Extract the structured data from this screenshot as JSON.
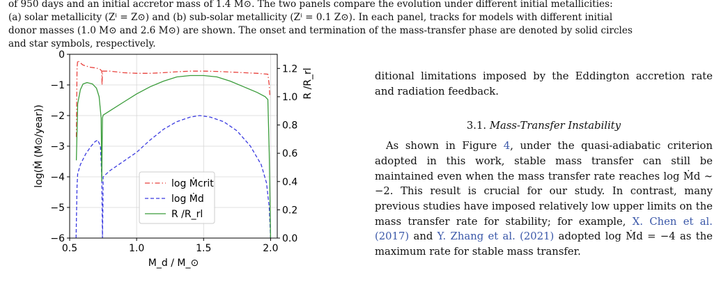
{
  "caption": {
    "line1": "of 950 days and an initial accretor mass of 1.4 M⊙. The two panels compare the evolution under different initial metallicities:",
    "line2": "(a) solar metallicity (Zⁱ = Z⊙) and (b) sub-solar metallicity (Zⁱ = 0.1 Z⊙). In each panel, tracks for models with different initial",
    "line3": "donor masses (1.0 M⊙ and 2.6 M⊙) are shown. The onset and termination of the mass-transfer phase are denoted by solid circles",
    "line4": "and star symbols, respectively."
  },
  "right_column": {
    "intro": "ditional limitations imposed by the Eddington accretion rate and radiation feedback.",
    "section_number": "3.1.",
    "section_title": "Mass-Transfer Instability",
    "para_before_fig": "As shown in Figure ",
    "fig_ref": "4",
    "para_after_fig": ", under the quasi-adiabatic criterion adopted in this work, stable mass transfer can still be maintained even when the mass transfer rate reaches log Ṁd ∼ −2. This result is crucial for our study. In contrast, many previous studies have imposed relatively low upper limits on the mass transfer rate for stability; for example, ",
    "cite1": "X. Chen et al. (2017)",
    "para_mid": " and ",
    "cite2": "Y. Zhang et al. (2021)",
    "para_end": " adopted log Ṁd = −4 as the maximum rate for stable mass transfer."
  },
  "chart_data": {
    "type": "line",
    "xlabel": "M_d / M_⊙",
    "ylabel_left": "log(Ṁ (M⊙/year))",
    "ylabel_right": "R /R_rl",
    "xlim": [
      0.5,
      2.05
    ],
    "ylim_left": [
      -6,
      0
    ],
    "ylim_right": [
      0.0,
      1.3
    ],
    "xticks": [
      "0.5",
      "1.0",
      "1.5",
      "2.0"
    ],
    "yticks_left": [
      "−6",
      "−5",
      "−4",
      "−3",
      "−2",
      "−1",
      "0"
    ],
    "yticks_right": [
      "0.0",
      "0.2",
      "0.4",
      "0.6",
      "0.8",
      "1.0",
      "1.2"
    ],
    "grid": true,
    "legend_position": "lower-left-center",
    "series": [
      {
        "name": "log Ṁcrit",
        "axis": "left",
        "color": "#e8413c",
        "style": "dashdot",
        "points": [
          [
            0.55,
            -2.7
          ],
          [
            0.555,
            -0.45
          ],
          [
            0.56,
            -0.2
          ],
          [
            0.57,
            -0.25
          ],
          [
            0.6,
            -0.35
          ],
          [
            0.65,
            -0.42
          ],
          [
            0.7,
            -0.45
          ],
          [
            0.73,
            -0.5
          ],
          [
            0.74,
            -0.55
          ],
          [
            0.742,
            -1.0
          ],
          [
            0.745,
            -0.55
          ],
          [
            0.8,
            -0.55
          ],
          [
            0.9,
            -0.6
          ],
          [
            1.0,
            -0.62
          ],
          [
            1.1,
            -0.62
          ],
          [
            1.2,
            -0.6
          ],
          [
            1.3,
            -0.57
          ],
          [
            1.4,
            -0.55
          ],
          [
            1.5,
            -0.55
          ],
          [
            1.6,
            -0.56
          ],
          [
            1.7,
            -0.58
          ],
          [
            1.8,
            -0.6
          ],
          [
            1.9,
            -0.62
          ],
          [
            1.98,
            -0.65
          ],
          [
            1.99,
            -1.0
          ],
          [
            1.995,
            -1.4
          ]
        ]
      },
      {
        "name": "log Ṁd",
        "axis": "left",
        "color": "#3a3ae0",
        "style": "dashed",
        "points": [
          [
            0.548,
            -6.0
          ],
          [
            0.555,
            -4.3
          ],
          [
            0.56,
            -3.9
          ],
          [
            0.58,
            -3.6
          ],
          [
            0.62,
            -3.25
          ],
          [
            0.66,
            -3.0
          ],
          [
            0.69,
            -2.85
          ],
          [
            0.71,
            -2.8
          ],
          [
            0.73,
            -3.0
          ],
          [
            0.74,
            -4.0
          ],
          [
            0.745,
            -6.0
          ],
          [
            0.748,
            -5.0
          ],
          [
            0.75,
            -4.0
          ],
          [
            0.8,
            -3.8
          ],
          [
            0.9,
            -3.5
          ],
          [
            1.0,
            -3.2
          ],
          [
            1.1,
            -2.8
          ],
          [
            1.2,
            -2.45
          ],
          [
            1.3,
            -2.2
          ],
          [
            1.4,
            -2.05
          ],
          [
            1.47,
            -2.0
          ],
          [
            1.55,
            -2.05
          ],
          [
            1.65,
            -2.2
          ],
          [
            1.75,
            -2.5
          ],
          [
            1.85,
            -3.0
          ],
          [
            1.93,
            -3.6
          ],
          [
            1.97,
            -4.2
          ],
          [
            1.99,
            -5.0
          ],
          [
            2.0,
            -6.0
          ]
        ]
      },
      {
        "name": "R /R_rl",
        "axis": "right",
        "color": "#3a9c3a",
        "style": "solid",
        "points": [
          [
            0.55,
            0.55
          ],
          [
            0.555,
            0.75
          ],
          [
            0.56,
            0.95
          ],
          [
            0.58,
            1.05
          ],
          [
            0.6,
            1.09
          ],
          [
            0.63,
            1.1
          ],
          [
            0.67,
            1.09
          ],
          [
            0.7,
            1.06
          ],
          [
            0.72,
            1.0
          ],
          [
            0.735,
            0.85
          ],
          [
            0.74,
            0.4
          ],
          [
            0.742,
            0.6
          ],
          [
            0.745,
            0.85
          ],
          [
            0.75,
            0.87
          ],
          [
            0.8,
            0.9
          ],
          [
            0.9,
            0.96
          ],
          [
            1.0,
            1.02
          ],
          [
            1.1,
            1.07
          ],
          [
            1.2,
            1.11
          ],
          [
            1.3,
            1.14
          ],
          [
            1.4,
            1.15
          ],
          [
            1.5,
            1.15
          ],
          [
            1.6,
            1.14
          ],
          [
            1.7,
            1.11
          ],
          [
            1.8,
            1.07
          ],
          [
            1.9,
            1.03
          ],
          [
            1.96,
            1.0
          ],
          [
            1.98,
            0.98
          ],
          [
            1.99,
            0.6
          ],
          [
            2.0,
            0.0
          ]
        ]
      }
    ]
  }
}
